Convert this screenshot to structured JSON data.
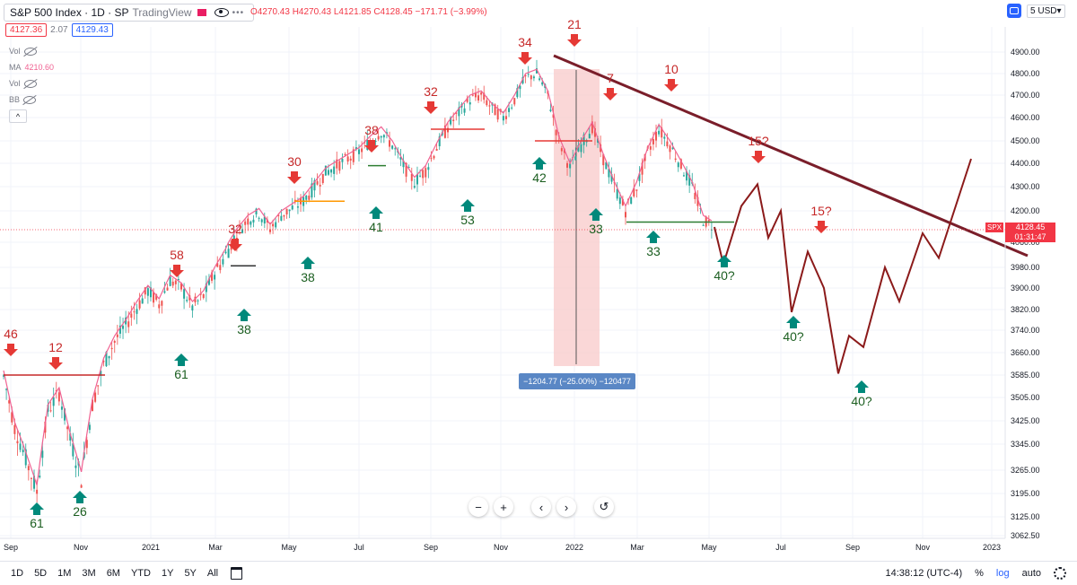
{
  "header": {
    "title": "S&P 500 Index · 1D · SP",
    "brand": "TradingView",
    "ohlc": "O4270.43 H4270.43 L4121.85 C4128.45 −171.71 (−3.99%)",
    "bid": "4127.36",
    "spread": "2.07",
    "ask": "4129.43"
  },
  "indicators": [
    {
      "label": "Vol",
      "value": ""
    },
    {
      "label": "MA",
      "value": "4210.60"
    },
    {
      "label": "Vol",
      "value": ""
    },
    {
      "label": "BB",
      "value": ""
    }
  ],
  "price_scale": {
    "currency": "USD",
    "ticks": [
      "4900.00",
      "4800.00",
      "4700.00",
      "4600.00",
      "4500.00",
      "4400.00",
      "4300.00",
      "4200.00",
      "4060.00",
      "3980.00",
      "3900.00",
      "3820.00",
      "3740.00",
      "3660.00",
      "3585.00",
      "3505.00",
      "3425.00",
      "3345.00",
      "3265.00",
      "3195.00",
      "3125.00",
      "3062.50"
    ],
    "price_top": "5",
    "last_price": "4128.45",
    "ticker": "SPX",
    "countdown": "01:31:47"
  },
  "time_scale": {
    "labels": [
      "Sep",
      "Nov",
      "2021",
      "Mar",
      "May",
      "Jul",
      "Sep",
      "Nov",
      "2022",
      "Mar",
      "May",
      "Jul",
      "Sep",
      "Nov",
      "2023"
    ]
  },
  "chart_data": {
    "type": "line",
    "title": "S&P 500 Index · 1D · SP",
    "y_axis": "price",
    "series": [
      {
        "name": "",
        "points": [
          [
            0,
            3580
          ],
          [
            1,
            3400
          ],
          [
            2,
            3300
          ],
          [
            3,
            3200
          ],
          [
            4,
            3460
          ],
          [
            5,
            3520
          ],
          [
            6,
            3360
          ],
          [
            7,
            3240
          ],
          [
            8,
            3480
          ],
          [
            9,
            3620
          ],
          [
            10,
            3700
          ],
          [
            11,
            3760
          ],
          [
            12,
            3830
          ],
          [
            13,
            3890
          ],
          [
            14,
            3840
          ],
          [
            15,
            3930
          ],
          [
            16,
            3900
          ],
          [
            17,
            3830
          ],
          [
            18,
            3870
          ],
          [
            19,
            3960
          ],
          [
            20,
            4020
          ],
          [
            21,
            4100
          ],
          [
            22,
            4160
          ],
          [
            23,
            4190
          ],
          [
            24,
            4120
          ],
          [
            25,
            4180
          ],
          [
            26,
            4210
          ],
          [
            27,
            4240
          ],
          [
            28,
            4300
          ],
          [
            29,
            4360
          ],
          [
            30,
            4390
          ],
          [
            31,
            4420
          ],
          [
            32,
            4450
          ],
          [
            33,
            4500
          ],
          [
            34,
            4540
          ],
          [
            35,
            4480
          ],
          [
            36,
            4390
          ],
          [
            37,
            4320
          ],
          [
            38,
            4370
          ],
          [
            39,
            4470
          ],
          [
            40,
            4560
          ],
          [
            41,
            4620
          ],
          [
            42,
            4680
          ],
          [
            43,
            4700
          ],
          [
            44,
            4640
          ],
          [
            45,
            4600
          ],
          [
            46,
            4680
          ],
          [
            47,
            4780
          ],
          [
            48,
            4800
          ],
          [
            49,
            4700
          ],
          [
            50,
            4500
          ],
          [
            51,
            4380
          ],
          [
            52,
            4480
          ],
          [
            53,
            4560
          ],
          [
            54,
            4420
          ],
          [
            55,
            4300
          ],
          [
            56,
            4200
          ],
          [
            57,
            4300
          ],
          [
            58,
            4450
          ],
          [
            59,
            4550
          ],
          [
            60,
            4480
          ],
          [
            61,
            4390
          ],
          [
            62,
            4300
          ],
          [
            63,
            4160
          ],
          [
            64,
            4128
          ]
        ]
      },
      {
        "name": "",
        "points": [
          [
            64,
            4128
          ],
          [
            65,
            3990
          ],
          [
            66,
            4220
          ],
          [
            67,
            4310
          ],
          [
            68,
            4080
          ],
          [
            69,
            4200
          ],
          [
            70,
            3810
          ],
          [
            71,
            4030
          ],
          [
            72,
            3900
          ],
          [
            73,
            3590
          ],
          [
            74,
            3720
          ],
          [
            75,
            3680
          ],
          [
            76,
            3980
          ],
          [
            77,
            3850
          ],
          [
            78,
            4100
          ],
          [
            79,
            4010
          ],
          [
            80,
            4420
          ]
        ]
      }
    ],
    "annotations": {
      "down_arrows": [
        "46",
        "12",
        "58",
        "32",
        "30",
        "38",
        "32",
        "34",
        "21",
        "7",
        "10",
        "15?",
        "15?"
      ],
      "up_arrows": [
        "61",
        "26",
        "61",
        "38",
        "38",
        "41",
        "53",
        "42",
        "33",
        "33",
        "40?",
        "40?",
        "40?"
      ],
      "measure_label": "−1204.77 (−25.00%) −120477"
    },
    "ylim": [
      3062.5,
      4960
    ],
    "grid": true,
    "colors": {
      "up": "#26a69a",
      "down": "#ef5350",
      "projection": "#8b1a1a",
      "ma": "#f06292",
      "trendline": "#7a1e2a"
    }
  },
  "nav_controls": {
    "minus": "−",
    "plus": "+",
    "left": "‹",
    "right": "›",
    "reset": "↺"
  },
  "footer": {
    "ranges": [
      "1D",
      "5D",
      "1M",
      "3M",
      "6M",
      "YTD",
      "1Y",
      "5Y",
      "All"
    ],
    "time": "14:38:12 (UTC-4)",
    "percent": "%",
    "log": "log",
    "auto": "auto"
  }
}
